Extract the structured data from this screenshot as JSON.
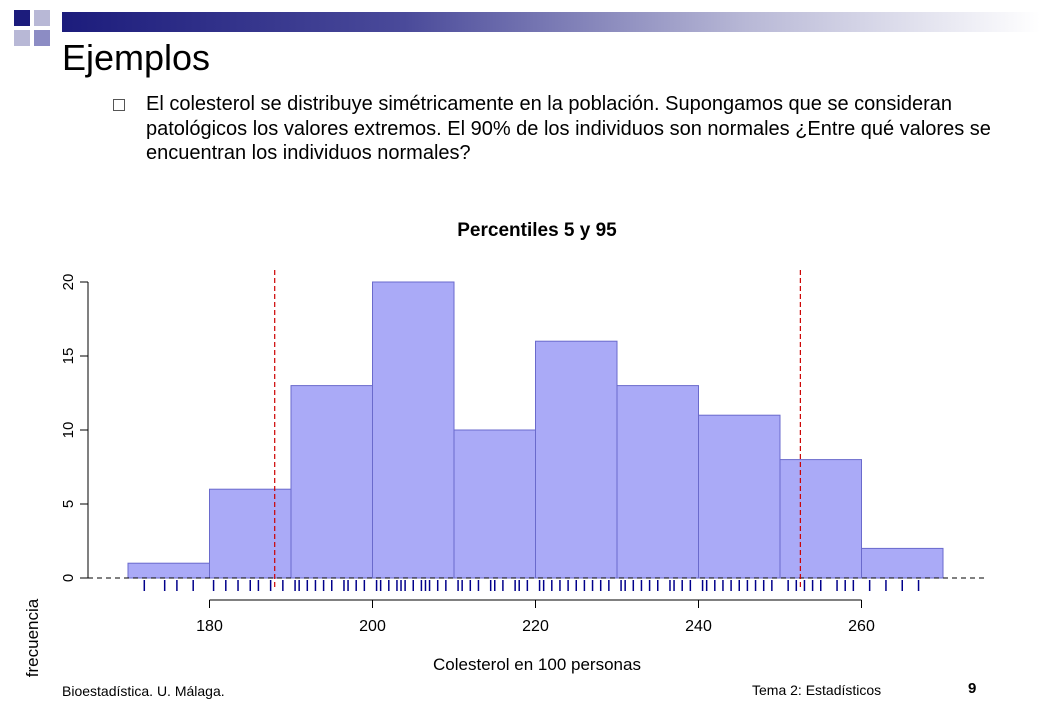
{
  "slide": {
    "title": "Ejemplos",
    "bullet_text": "El colesterol se distribuye simétricamente en la población. Supongamos que se consideran patológicos los valores extremos. El 90% de los individuos son normales ¿Entre qué valores se encuentran los individuos normales?",
    "footer_left": "Bioestadística. U. Málaga.",
    "footer_center": "Tema 2: Estadísticos",
    "page_number": "9"
  },
  "chart_data": {
    "type": "bar",
    "title": "Percentiles 5 y 95",
    "xlabel": "Colesterol en 100 personas",
    "ylabel": "frecuencia",
    "bins": [
      {
        "from": 170,
        "to": 180,
        "count": 1
      },
      {
        "from": 180,
        "to": 190,
        "count": 6
      },
      {
        "from": 190,
        "to": 200,
        "count": 13
      },
      {
        "from": 200,
        "to": 210,
        "count": 20
      },
      {
        "from": 210,
        "to": 220,
        "count": 10
      },
      {
        "from": 220,
        "to": 230,
        "count": 16
      },
      {
        "from": 230,
        "to": 240,
        "count": 13
      },
      {
        "from": 240,
        "to": 250,
        "count": 11
      },
      {
        "from": 250,
        "to": 260,
        "count": 8
      },
      {
        "from": 260,
        "to": 270,
        "count": 2
      }
    ],
    "x_ticks": [
      "180",
      "200",
      "220",
      "240",
      "260"
    ],
    "y_ticks": [
      "0",
      "5",
      "10",
      "15",
      "20"
    ],
    "percentile_lines": [
      188,
      252.5
    ],
    "rug": [
      172,
      174.5,
      176,
      178,
      180.5,
      182,
      183.5,
      185,
      186,
      187.5,
      189,
      190.5,
      191,
      192,
      193,
      194,
      195,
      196.5,
      197,
      198,
      199,
      200.5,
      201,
      202,
      203,
      203.5,
      204,
      205,
      206,
      206.5,
      207,
      208,
      209,
      210.5,
      211,
      212,
      213,
      214.5,
      215,
      216,
      217.5,
      218,
      219,
      220.5,
      221,
      222,
      223,
      224,
      225,
      226,
      227,
      228,
      229,
      230.5,
      231,
      232,
      233,
      234,
      235,
      236.5,
      237,
      238,
      239,
      240.5,
      241,
      242,
      243,
      244,
      245,
      246,
      247,
      248,
      249,
      251,
      252,
      253,
      254,
      255,
      257,
      258,
      259,
      261,
      263,
      265,
      267
    ],
    "colors": {
      "bar_fill": "#aaaaf7",
      "bar_stroke": "#6a6acc",
      "percentile_line": "#cc0000",
      "rug": "#00008b"
    }
  }
}
